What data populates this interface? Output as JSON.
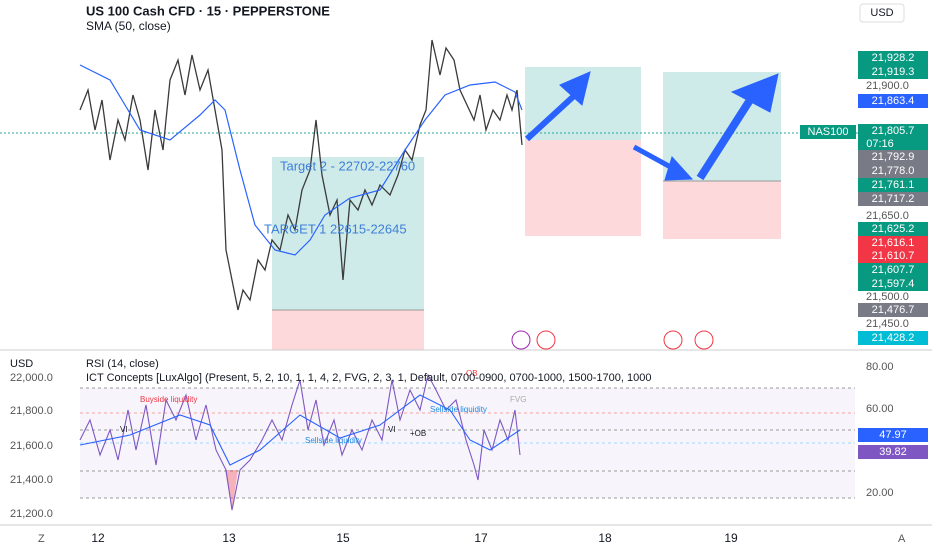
{
  "header": {
    "title": "US 100 Cash CFD · 15 · PEPPERSTONE",
    "indicator": "SMA (50, close)",
    "currency": "USD"
  },
  "annotations": {
    "target_2": "Target 2 - 22702-22760",
    "target_1": "TARGET 1 22615-22645"
  },
  "price_axis": {
    "symbol_tag": "NAS100",
    "countdown": "07:16",
    "labels": [
      "21,928.2",
      "21,919.3",
      "21,863.4",
      "21,805.7",
      "21,792.9",
      "21,778.0",
      "21,761.1",
      "21,717.2",
      "21,625.2",
      "21,616.1",
      "21,610.7",
      "21,607.7",
      "21,597.4",
      "21,476.7",
      "21,428.2"
    ],
    "ticks": [
      "21,900.0",
      "21,650.0",
      "21,500.0",
      "21,450.0"
    ]
  },
  "lower_pane": {
    "currency": "USD",
    "rsi": "RSI (14, close)",
    "ict": "ICT Concepts [LuxAlgo] (Present, 5, 2, 10, 1, 1, 4, 2, FVG, 2, 3, 1, Default, 0700-0900, 0700-1000, 1500-1700, 1000",
    "left_ticks": [
      "22,000.0",
      "21,800.0",
      "21,600.0",
      "21,400.0",
      "21,200.0"
    ],
    "right_ticks": [
      "80.00",
      "60.00",
      "20.00"
    ],
    "rsi_tag": "47.97",
    "ma_tag": "39.82",
    "labels": {
      "buyside": "Buyside liquidity",
      "sellside_1": "Sellside liquidity",
      "sellside_2": "Sellside liquidity",
      "vi_1": "VI",
      "vi_2": "VI",
      "ob_plus": "+OB",
      "ob": "OB",
      "fvg": "FVG"
    }
  },
  "time_axis": {
    "labels": [
      "12",
      "13",
      "15",
      "17",
      "18",
      "19"
    ],
    "left_icon": "Z",
    "right_icon": "A"
  }
}
